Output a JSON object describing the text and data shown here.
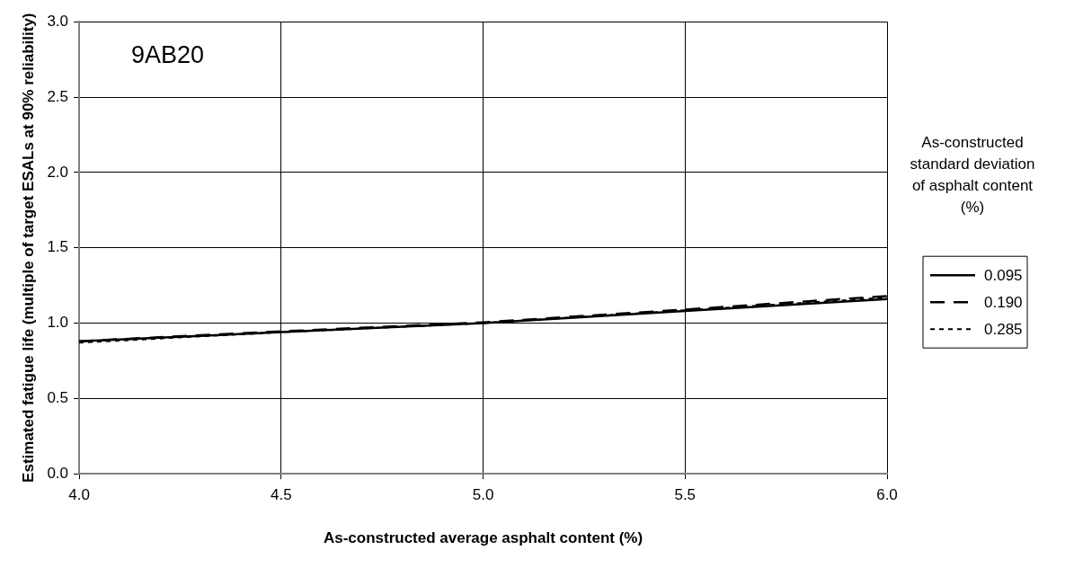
{
  "chart_data": {
    "type": "line",
    "xlabel": "As-constructed average asphalt content (%)",
    "ylabel": "Estimated fatigue life (multiple of target ESALs at 90% reliability)",
    "legend_title": "As-constructed standard deviation of asphalt content (%)",
    "annotations": [
      "9AB20"
    ],
    "x": [
      4.0,
      4.5,
      5.0,
      5.5,
      6.0
    ],
    "xlim": [
      4.0,
      6.0
    ],
    "xticks": [
      {
        "value": 4,
        "label": "4.0"
      },
      {
        "value": 4.5,
        "label": "4.5"
      },
      {
        "value": 5,
        "label": "5.0"
      },
      {
        "value": 5.5,
        "label": "5.5"
      },
      {
        "value": 6,
        "label": "6.0"
      }
    ],
    "ylim": [
      0,
      3
    ],
    "yticks": [
      {
        "value": 0,
        "label": "0.0"
      },
      {
        "value": 0.5,
        "label": "0.5"
      },
      {
        "value": 1,
        "label": "1.0"
      },
      {
        "value": 1.5,
        "label": "1.5"
      },
      {
        "value": 2,
        "label": "2.0"
      },
      {
        "value": 2.5,
        "label": "2.5"
      },
      {
        "value": 3,
        "label": "3.0"
      }
    ],
    "grid": true,
    "legend": "right",
    "marker": "none",
    "series": [
      {
        "name": "0.095",
        "color": "#000000",
        "line_style": "solid",
        "values": [
          0.88,
          0.94,
          1.0,
          1.08,
          1.16
        ]
      },
      {
        "name": "0.190",
        "color": "#000000",
        "line_style": "dashed",
        "values": [
          0.88,
          0.945,
          1.005,
          1.09,
          1.18
        ]
      },
      {
        "name": "0.285",
        "color": "#000000",
        "line_style": "dotted",
        "values": [
          0.87,
          0.94,
          1.0,
          1.085,
          1.17
        ]
      }
    ]
  }
}
